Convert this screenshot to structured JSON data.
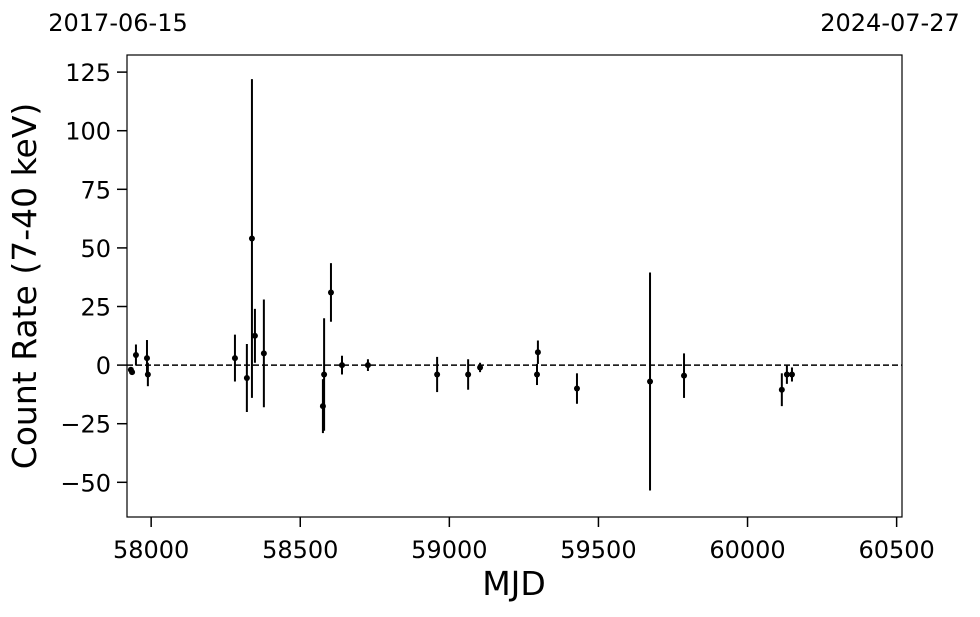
{
  "chart_data": {
    "type": "errorbar-scatter",
    "xlabel": "MJD",
    "ylabel": "Count Rate (7-40 keV)",
    "xlim": [
      57919,
      60518
    ],
    "ylim": [
      -64.8,
      132.3
    ],
    "xticks": [
      58000,
      58500,
      59000,
      59500,
      60000,
      60500
    ],
    "yticks": [
      {
        "value": -50,
        "label": "−50"
      },
      {
        "value": -25,
        "label": "−25"
      },
      0,
      25,
      50,
      75,
      100,
      125
    ],
    "x2ticks": [
      {
        "value": 57919,
        "label": "2017-06-15"
      },
      {
        "value": 60518,
        "label": "2024-07-27"
      }
    ],
    "reference_line": {
      "value": 0,
      "style": "dashed",
      "color": "#000000"
    },
    "series": [
      {
        "color": "#000000",
        "x": [
          57932,
          57936,
          57949,
          57986,
          57989,
          58281,
          58321,
          58338,
          58348,
          58378,
          58576,
          58580,
          58603,
          58640,
          58727,
          58959,
          59063,
          59103,
          59294,
          59297,
          59428,
          59673,
          59787,
          60115,
          60132,
          60149
        ],
        "values": [
          -2,
          -3,
          4.3,
          3,
          -4,
          3,
          -5.5,
          54,
          12.5,
          5,
          -17.5,
          -4,
          31,
          0,
          0,
          -4,
          -4,
          -1,
          -4,
          5.5,
          -10,
          -7,
          -4.5,
          -10.5,
          -4,
          -4
        ],
        "errors": [
          1,
          1,
          4.5,
          7.7,
          5,
          10,
          14.5,
          68,
          11.5,
          23,
          11.5,
          24,
          12.5,
          4,
          2.5,
          7.5,
          6.5,
          2,
          4.5,
          5,
          6.5,
          46.5,
          9.5,
          7,
          4,
          3
        ]
      }
    ]
  }
}
